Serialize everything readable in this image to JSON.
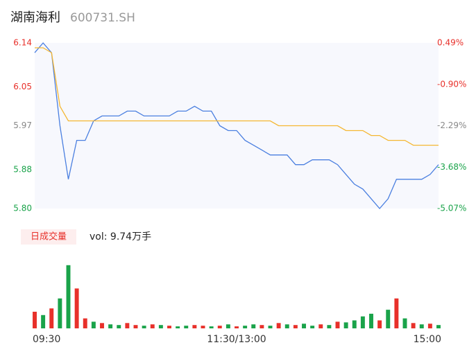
{
  "chart_data": {
    "type": "line",
    "title": "湖南海利",
    "subtitle": "600731.SH",
    "x": [
      0,
      5,
      10,
      15,
      20,
      25,
      30,
      35,
      40,
      45,
      50,
      55,
      60,
      65,
      70,
      75,
      80,
      85,
      90,
      95,
      100,
      105,
      110,
      115,
      120,
      125,
      130,
      135,
      140,
      145,
      150,
      155,
      160,
      165,
      170,
      175,
      180,
      185,
      190,
      195,
      200,
      205,
      210,
      215,
      220,
      225,
      230,
      235,
      240
    ],
    "xlim": [
      0,
      240
    ],
    "xticks": [
      {
        "value": 0,
        "label": "09:30"
      },
      {
        "value": 120,
        "label": "11:30/13:00"
      },
      {
        "value": 240,
        "label": "15:00"
      }
    ],
    "ylim": [
      5.8,
      6.14
    ],
    "yticks": [
      {
        "value": 5.8,
        "label": "5.80"
      },
      5.88,
      5.97,
      6.05,
      6.14
    ],
    "ytick_colors": [
      "#1aa34a",
      "#1aa34a",
      "#888888",
      "#e8302a",
      "#e8302a"
    ],
    "y2lim": [
      -5.07,
      0.49
    ],
    "y2ticks": [
      {
        "value": -5.07,
        "label": "-5.07%"
      },
      {
        "value": -3.68,
        "label": "-3.68%"
      },
      {
        "value": -2.29,
        "label": "-2.29%"
      },
      {
        "value": -0.9,
        "label": "-0.90%"
      },
      {
        "value": 0.49,
        "label": "0.49%"
      }
    ],
    "series": [
      {
        "color": "#4a7fe0",
        "values": [
          6.12,
          6.14,
          6.12,
          5.97,
          5.86,
          5.94,
          5.94,
          5.98,
          5.99,
          5.99,
          5.99,
          6.0,
          6.0,
          5.99,
          5.99,
          5.99,
          5.99,
          6.0,
          6.0,
          6.01,
          6.0,
          6.0,
          5.97,
          5.96,
          5.96,
          5.94,
          5.93,
          5.92,
          5.91,
          5.91,
          5.91,
          5.89,
          5.89,
          5.9,
          5.9,
          5.9,
          5.89,
          5.87,
          5.85,
          5.84,
          5.82,
          5.8,
          5.82,
          5.86,
          5.86,
          5.86,
          5.86,
          5.87,
          5.89
        ]
      },
      {
        "color": "#f5b731",
        "values": [
          6.13,
          6.13,
          6.12,
          6.01,
          5.98,
          5.98,
          5.98,
          5.98,
          5.98,
          5.98,
          5.98,
          5.98,
          5.98,
          5.98,
          5.98,
          5.98,
          5.98,
          5.98,
          5.98,
          5.98,
          5.98,
          5.98,
          5.98,
          5.98,
          5.98,
          5.98,
          5.98,
          5.98,
          5.98,
          5.97,
          5.97,
          5.97,
          5.97,
          5.97,
          5.97,
          5.97,
          5.97,
          5.96,
          5.96,
          5.96,
          5.95,
          5.95,
          5.94,
          5.94,
          5.94,
          5.93,
          5.93,
          5.93,
          5.93
        ]
      }
    ],
    "volume_tab": "日成交量",
    "volume_text": "vol: 9.74万手",
    "volume": {
      "values": [
        25,
        20,
        30,
        45,
        95,
        60,
        15,
        10,
        8,
        6,
        5,
        8,
        5,
        4,
        6,
        5,
        4,
        3,
        4,
        5,
        4,
        3,
        4,
        6,
        3,
        4,
        6,
        5,
        4,
        8,
        6,
        5,
        7,
        4,
        6,
        5,
        10,
        9,
        12,
        18,
        22,
        12,
        28,
        45,
        15,
        8,
        6,
        7,
        5
      ],
      "colors": [
        "#e8302a",
        "#1aa34a",
        "#e8302a",
        "#1aa34a",
        "#1aa34a",
        "#e8302a",
        "#e8302a",
        "#1aa34a",
        "#e8302a",
        "#1aa34a",
        "#1aa34a",
        "#e8302a",
        "#e8302a",
        "#1aa34a",
        "#e8302a",
        "#1aa34a",
        "#e8302a",
        "#1aa34a",
        "#1aa34a",
        "#e8302a",
        "#e8302a",
        "#1aa34a",
        "#e8302a",
        "#1aa34a",
        "#e8302a",
        "#1aa34a",
        "#1aa34a",
        "#e8302a",
        "#1aa34a",
        "#e8302a",
        "#1aa34a",
        "#e8302a",
        "#1aa34a",
        "#1aa34a",
        "#e8302a",
        "#1aa34a",
        "#e8302a",
        "#1aa34a",
        "#1aa34a",
        "#1aa34a",
        "#1aa34a",
        "#e8302a",
        "#1aa34a",
        "#e8302a",
        "#1aa34a",
        "#e8302a",
        "#1aa34a",
        "#e8302a",
        "#1aa34a"
      ],
      "ylim": [
        0,
        100
      ]
    }
  }
}
